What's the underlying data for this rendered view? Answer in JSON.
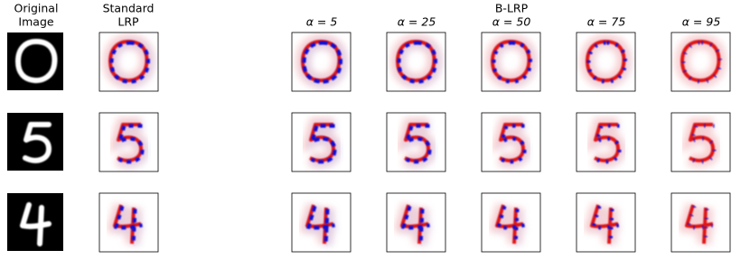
{
  "header": {
    "original": [
      "Original",
      "Image"
    ],
    "standard": [
      "Standard",
      "LRP"
    ],
    "group": "B-LRP",
    "alphas": [
      "α = 5",
      "α = 25",
      "α = 50",
      "α = 75",
      "α = 95"
    ]
  }
}
